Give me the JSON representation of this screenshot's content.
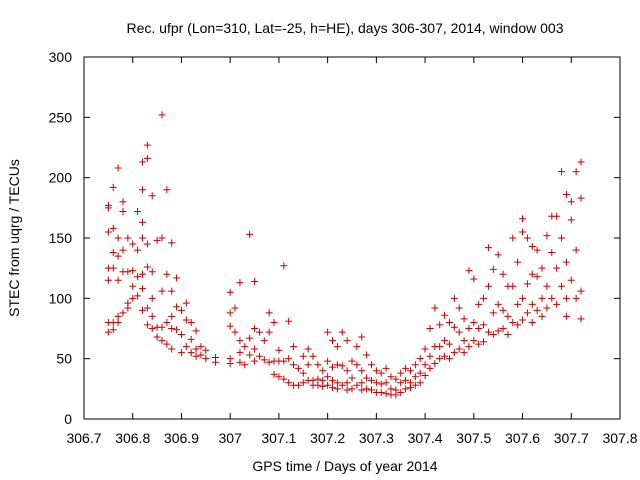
{
  "chart_data": {
    "type": "scatter",
    "title": "Rec. ufpr (Lon=310, Lat=-25, h=HE), days 306-307, 2014, window 003",
    "xlabel": "GPS time / Days of year 2014",
    "ylabel": "STEC from uqrg / TECUs",
    "xlim": [
      306.7,
      307.8
    ],
    "ylim": [
      0,
      300
    ],
    "xticks": [
      "306.7",
      "306.8",
      "306.9",
      "307",
      "307.1",
      "307.2",
      "307.3",
      "307.4",
      "307.5",
      "307.6",
      "307.7",
      "307.8"
    ],
    "yticks": [
      "0",
      "50",
      "100",
      "150",
      "200",
      "250",
      "300"
    ],
    "grid": false,
    "marker": "+",
    "marker_color": "#cc0000",
    "series": [
      {
        "points": [
          [
            306.75,
            175
          ],
          [
            306.75,
            177
          ],
          [
            306.75,
            155
          ],
          [
            306.75,
            125
          ],
          [
            306.75,
            115
          ],
          [
            306.75,
            80
          ],
          [
            306.75,
            72
          ],
          [
            306.76,
            192
          ],
          [
            306.76,
            158
          ],
          [
            306.76,
            138
          ],
          [
            306.76,
            125
          ],
          [
            306.76,
            80
          ],
          [
            306.76,
            74
          ],
          [
            306.77,
            208
          ],
          [
            306.77,
            150
          ],
          [
            306.77,
            135
          ],
          [
            306.77,
            115
          ],
          [
            306.77,
            85
          ],
          [
            306.77,
            80
          ],
          [
            306.78,
            180
          ],
          [
            306.78,
            172
          ],
          [
            306.78,
            140
          ],
          [
            306.78,
            122
          ],
          [
            306.78,
            88
          ],
          [
            306.79,
            150
          ],
          [
            306.79,
            122
          ],
          [
            306.79,
            96
          ],
          [
            306.79,
            92
          ],
          [
            306.8,
            145
          ],
          [
            306.8,
            123
          ],
          [
            306.8,
            110
          ],
          [
            306.8,
            100
          ],
          [
            306.81,
            172
          ],
          [
            306.81,
            140
          ],
          [
            306.81,
            118
          ],
          [
            306.81,
            102
          ],
          [
            306.82,
            213
          ],
          [
            306.82,
            190
          ],
          [
            306.82,
            163
          ],
          [
            306.82,
            150
          ],
          [
            306.82,
            120
          ],
          [
            306.82,
            108
          ],
          [
            306.82,
            90
          ],
          [
            306.83,
            227
          ],
          [
            306.83,
            216
          ],
          [
            306.83,
            145
          ],
          [
            306.83,
            126
          ],
          [
            306.83,
            92
          ],
          [
            306.83,
            78
          ],
          [
            306.84,
            185
          ],
          [
            306.84,
            122
          ],
          [
            306.84,
            100
          ],
          [
            306.84,
            85
          ],
          [
            306.84,
            75
          ],
          [
            306.85,
            148
          ],
          [
            306.85,
            76
          ],
          [
            306.85,
            68
          ],
          [
            306.86,
            252
          ],
          [
            306.86,
            150
          ],
          [
            306.86,
            106
          ],
          [
            306.86,
            76
          ],
          [
            306.86,
            65
          ],
          [
            306.87,
            190
          ],
          [
            306.87,
            120
          ],
          [
            306.87,
            80
          ],
          [
            306.87,
            62
          ],
          [
            306.88,
            146
          ],
          [
            306.88,
            106
          ],
          [
            306.88,
            85
          ],
          [
            306.88,
            75
          ],
          [
            306.88,
            58
          ],
          [
            306.89,
            117
          ],
          [
            306.89,
            93
          ],
          [
            306.89,
            74
          ],
          [
            306.9,
            90
          ],
          [
            306.9,
            70
          ],
          [
            306.9,
            55
          ],
          [
            306.91,
            96
          ],
          [
            306.91,
            82
          ],
          [
            306.91,
            60
          ],
          [
            306.92,
            80
          ],
          [
            306.92,
            66
          ],
          [
            306.92,
            55
          ],
          [
            306.93,
            73
          ],
          [
            306.93,
            58
          ],
          [
            306.93,
            52
          ],
          [
            306.94,
            60
          ],
          [
            306.94,
            53
          ],
          [
            306.95,
            57
          ],
          [
            306.95,
            50
          ],
          [
            306.97,
            51
          ],
          [
            306.97,
            47
          ],
          [
            307.0,
            105
          ],
          [
            307.0,
            88
          ],
          [
            307.0,
            77
          ],
          [
            307.0,
            50
          ],
          [
            307.0,
            46
          ],
          [
            307.01,
            92
          ],
          [
            307.01,
            72
          ],
          [
            307.02,
            113
          ],
          [
            307.02,
            65
          ],
          [
            307.02,
            55
          ],
          [
            307.02,
            47
          ],
          [
            307.03,
            60
          ],
          [
            307.03,
            45
          ],
          [
            307.04,
            153
          ],
          [
            307.04,
            67
          ],
          [
            307.04,
            53
          ],
          [
            307.05,
            114
          ],
          [
            307.05,
            75
          ],
          [
            307.05,
            58
          ],
          [
            307.05,
            48
          ],
          [
            307.06,
            72
          ],
          [
            307.06,
            52
          ],
          [
            307.07,
            65
          ],
          [
            307.07,
            49
          ],
          [
            307.08,
            88
          ],
          [
            307.08,
            72
          ],
          [
            307.08,
            47
          ],
          [
            307.09,
            80
          ],
          [
            307.09,
            48
          ],
          [
            307.09,
            37
          ],
          [
            307.1,
            57
          ],
          [
            307.1,
            48
          ],
          [
            307.1,
            35
          ],
          [
            307.11,
            127
          ],
          [
            307.11,
            48
          ],
          [
            307.11,
            33
          ],
          [
            307.12,
            81
          ],
          [
            307.12,
            50
          ],
          [
            307.12,
            30
          ],
          [
            307.13,
            60
          ],
          [
            307.13,
            45
          ],
          [
            307.13,
            28
          ],
          [
            307.14,
            42
          ],
          [
            307.14,
            28
          ],
          [
            307.15,
            52
          ],
          [
            307.15,
            38
          ],
          [
            307.15,
            30
          ],
          [
            307.16,
            58
          ],
          [
            307.16,
            45
          ],
          [
            307.16,
            32
          ],
          [
            307.17,
            52
          ],
          [
            307.17,
            32
          ],
          [
            307.17,
            28
          ],
          [
            307.18,
            45
          ],
          [
            307.18,
            33
          ],
          [
            307.18,
            28
          ],
          [
            307.19,
            40
          ],
          [
            307.19,
            32
          ],
          [
            307.19,
            27
          ],
          [
            307.2,
            72
          ],
          [
            307.2,
            48
          ],
          [
            307.2,
            35
          ],
          [
            307.2,
            28
          ],
          [
            307.21,
            65
          ],
          [
            307.21,
            43
          ],
          [
            307.21,
            32
          ],
          [
            307.21,
            26
          ],
          [
            307.22,
            60
          ],
          [
            307.22,
            45
          ],
          [
            307.22,
            30
          ],
          [
            307.22,
            25
          ],
          [
            307.23,
            72
          ],
          [
            307.23,
            44
          ],
          [
            307.23,
            28
          ],
          [
            307.24,
            65
          ],
          [
            307.24,
            40
          ],
          [
            307.24,
            30
          ],
          [
            307.24,
            24
          ],
          [
            307.25,
            48
          ],
          [
            307.25,
            34
          ],
          [
            307.25,
            25
          ],
          [
            307.26,
            60
          ],
          [
            307.26,
            45
          ],
          [
            307.26,
            28
          ],
          [
            307.27,
            68
          ],
          [
            307.27,
            40
          ],
          [
            307.27,
            30
          ],
          [
            307.27,
            24
          ],
          [
            307.28,
            53
          ],
          [
            307.28,
            34
          ],
          [
            307.28,
            25
          ],
          [
            307.29,
            45
          ],
          [
            307.29,
            32
          ],
          [
            307.29,
            24
          ],
          [
            307.3,
            40
          ],
          [
            307.3,
            30
          ],
          [
            307.3,
            22
          ],
          [
            307.31,
            38
          ],
          [
            307.31,
            29
          ],
          [
            307.31,
            22
          ],
          [
            307.32,
            42
          ],
          [
            307.32,
            30
          ],
          [
            307.32,
            21
          ],
          [
            307.33,
            35
          ],
          [
            307.33,
            25
          ],
          [
            307.33,
            20
          ],
          [
            307.34,
            33
          ],
          [
            307.34,
            24
          ],
          [
            307.34,
            20
          ],
          [
            307.35,
            38
          ],
          [
            307.35,
            30
          ],
          [
            307.35,
            22
          ],
          [
            307.36,
            42
          ],
          [
            307.36,
            32
          ],
          [
            307.36,
            25
          ],
          [
            307.37,
            40
          ],
          [
            307.37,
            30
          ],
          [
            307.37,
            26
          ],
          [
            307.38,
            45
          ],
          [
            307.38,
            35
          ],
          [
            307.38,
            28
          ],
          [
            307.39,
            50
          ],
          [
            307.39,
            38
          ],
          [
            307.39,
            30
          ],
          [
            307.4,
            58
          ],
          [
            307.4,
            45
          ],
          [
            307.4,
            36
          ],
          [
            307.41,
            75
          ],
          [
            307.41,
            52
          ],
          [
            307.41,
            42
          ],
          [
            307.42,
            92
          ],
          [
            307.42,
            60
          ],
          [
            307.42,
            46
          ],
          [
            307.43,
            78
          ],
          [
            307.43,
            60
          ],
          [
            307.43,
            50
          ],
          [
            307.44,
            86
          ],
          [
            307.44,
            65
          ],
          [
            307.44,
            52
          ],
          [
            307.45,
            80
          ],
          [
            307.45,
            62
          ],
          [
            307.45,
            50
          ],
          [
            307.46,
            100
          ],
          [
            307.46,
            76
          ],
          [
            307.46,
            55
          ],
          [
            307.47,
            92
          ],
          [
            307.47,
            72
          ],
          [
            307.47,
            58
          ],
          [
            307.48,
            83
          ],
          [
            307.48,
            65
          ],
          [
            307.48,
            55
          ],
          [
            307.49,
            123
          ],
          [
            307.49,
            75
          ],
          [
            307.49,
            60
          ],
          [
            307.5,
            116
          ],
          [
            307.5,
            80
          ],
          [
            307.5,
            65
          ],
          [
            307.51,
            95
          ],
          [
            307.51,
            75
          ],
          [
            307.51,
            62
          ],
          [
            307.52,
            100
          ],
          [
            307.52,
            78
          ],
          [
            307.52,
            64
          ],
          [
            307.53,
            142
          ],
          [
            307.53,
            110
          ],
          [
            307.53,
            72
          ],
          [
            307.54,
            124
          ],
          [
            307.54,
            88
          ],
          [
            307.54,
            70
          ],
          [
            307.55,
            136
          ],
          [
            307.55,
            95
          ],
          [
            307.55,
            73
          ],
          [
            307.56,
            120
          ],
          [
            307.56,
            90
          ],
          [
            307.56,
            75
          ],
          [
            307.57,
            110
          ],
          [
            307.57,
            85
          ],
          [
            307.57,
            70
          ],
          [
            307.58,
            150
          ],
          [
            307.58,
            110
          ],
          [
            307.58,
            80
          ],
          [
            307.59,
            130
          ],
          [
            307.59,
            95
          ],
          [
            307.59,
            78
          ],
          [
            307.6,
            166
          ],
          [
            307.6,
            155
          ],
          [
            307.6,
            100
          ],
          [
            307.6,
            82
          ],
          [
            307.61,
            150
          ],
          [
            307.61,
            112
          ],
          [
            307.61,
            88
          ],
          [
            307.62,
            143
          ],
          [
            307.62,
            120
          ],
          [
            307.62,
            95
          ],
          [
            307.62,
            80
          ],
          [
            307.63,
            140
          ],
          [
            307.63,
            118
          ],
          [
            307.63,
            90
          ],
          [
            307.64,
            125
          ],
          [
            307.64,
            100
          ],
          [
            307.64,
            85
          ],
          [
            307.65,
            152
          ],
          [
            307.65,
            110
          ],
          [
            307.65,
            92
          ],
          [
            307.66,
            168
          ],
          [
            307.66,
            138
          ],
          [
            307.66,
            100
          ],
          [
            307.67,
            168
          ],
          [
            307.67,
            125
          ],
          [
            307.67,
            95
          ],
          [
            307.68,
            205
          ],
          [
            307.68,
            150
          ],
          [
            307.68,
            110
          ],
          [
            307.69,
            186
          ],
          [
            307.69,
            130
          ],
          [
            307.69,
            100
          ],
          [
            307.69,
            85
          ],
          [
            307.7,
            180
          ],
          [
            307.7,
            165
          ],
          [
            307.7,
            115
          ],
          [
            307.71,
            205
          ],
          [
            307.71,
            140
          ],
          [
            307.71,
            100
          ],
          [
            307.72,
            213
          ],
          [
            307.72,
            183
          ],
          [
            307.72,
            106
          ],
          [
            307.72,
            83
          ]
        ]
      }
    ]
  }
}
